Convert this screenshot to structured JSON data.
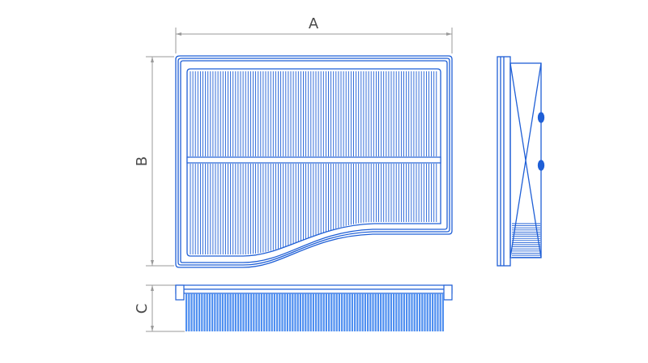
{
  "labels": {
    "a": "A",
    "b": "B",
    "c": "C"
  },
  "colors": {
    "line": "#1f5fd6",
    "fill": "#4f8ff0",
    "dim": "#9a9a9a",
    "text": "#4a4a4a"
  }
}
